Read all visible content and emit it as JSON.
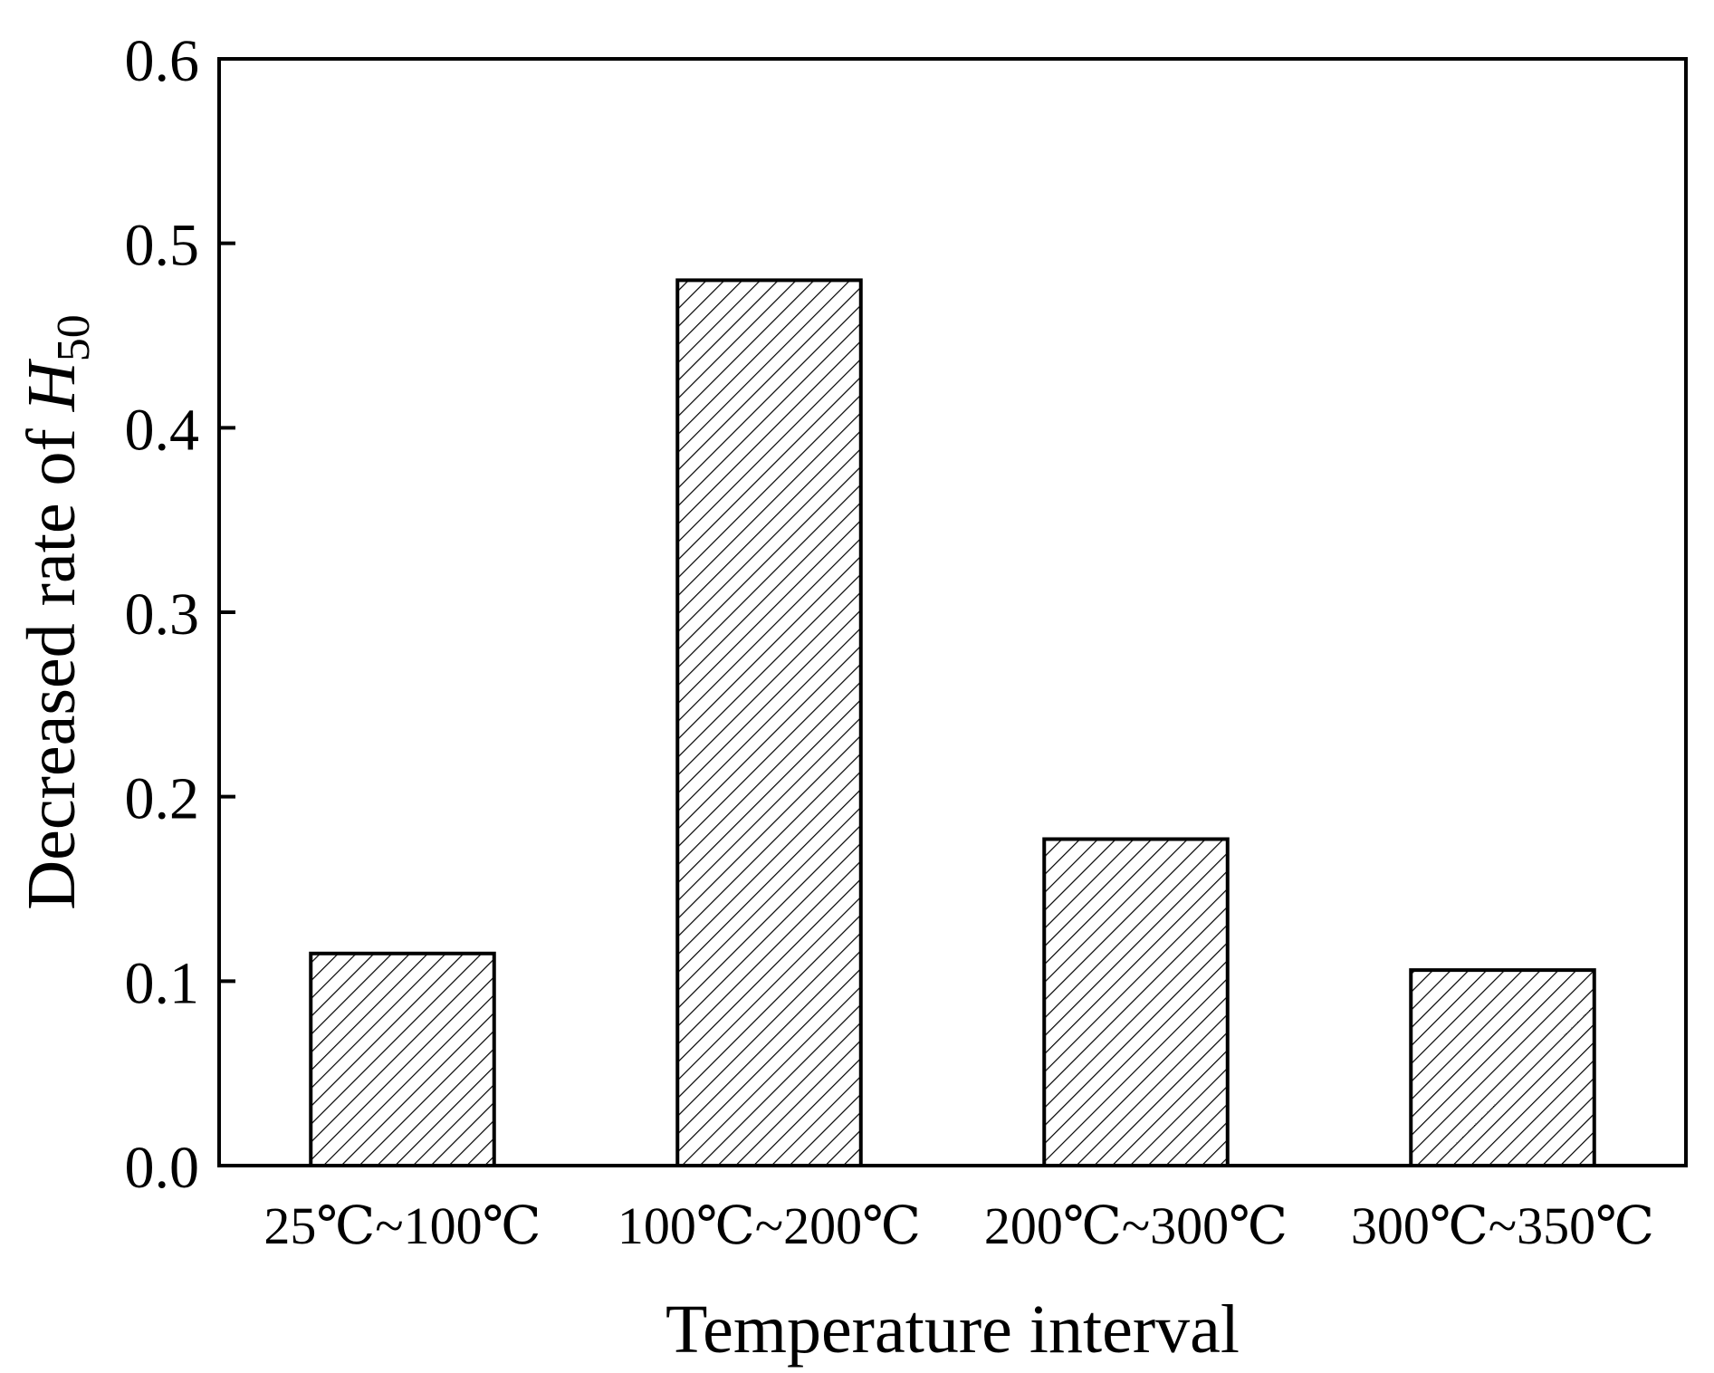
{
  "chart_data": {
    "type": "bar",
    "categories": [
      "25℃~100℃",
      "100℃~200℃",
      "200℃~300℃",
      "300℃~350℃"
    ],
    "values": [
      0.115,
      0.48,
      0.177,
      0.106
    ],
    "title": "",
    "xlabel": "Temperature interval",
    "ylabel": {
      "prefix": "Decreased rate of ",
      "variable": "H",
      "subscript": "50"
    },
    "ylim": [
      0,
      0.6
    ],
    "yticks": [
      "0.0",
      "0.1",
      "0.2",
      "0.3",
      "0.4",
      "0.5",
      "0.6"
    ],
    "grid": false,
    "legend": "none",
    "bar_fill": "hatched",
    "colors": {
      "bar_stroke": "#000000",
      "hatch": "#000000",
      "background": "#ffffff",
      "axis": "#000000"
    }
  }
}
